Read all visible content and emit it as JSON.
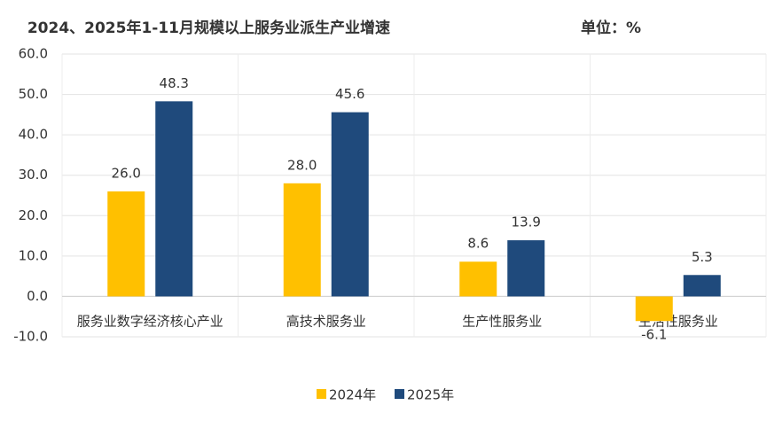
{
  "chart_data": {
    "type": "bar",
    "title": "2024、2025年1-11月规模以上服务业派生产业增速",
    "unit": "单位：%",
    "categories": [
      "服务业数字经济核心产业",
      "高技术服务业",
      "生产性服务业",
      "生活性服务业"
    ],
    "series": [
      {
        "name": "2024年",
        "color": "#ffc000",
        "values": [
          26.0,
          28.0,
          8.6,
          -6.1
        ],
        "value_labels": [
          "26.0",
          "28.0",
          "8.6",
          "-6.1"
        ]
      },
      {
        "name": "2025年",
        "color": "#1f4a7c",
        "values": [
          48.3,
          45.6,
          13.9,
          5.3
        ],
        "value_labels": [
          "48.3",
          "45.6",
          "13.9",
          "5.3"
        ]
      }
    ],
    "ylim": [
      -10,
      60
    ],
    "yticks": [
      {
        "value": -10,
        "label": "-10.0"
      },
      {
        "value": 0,
        "label": "0.0"
      },
      {
        "value": 10,
        "label": "10.0"
      },
      {
        "value": 20,
        "label": "20.0"
      },
      {
        "value": 30,
        "label": "30.0"
      },
      {
        "value": 40,
        "label": "40.0"
      },
      {
        "value": 50,
        "label": "50.0"
      },
      {
        "value": 60,
        "label": "60.0"
      }
    ],
    "grid": true,
    "legend": "bottom"
  }
}
